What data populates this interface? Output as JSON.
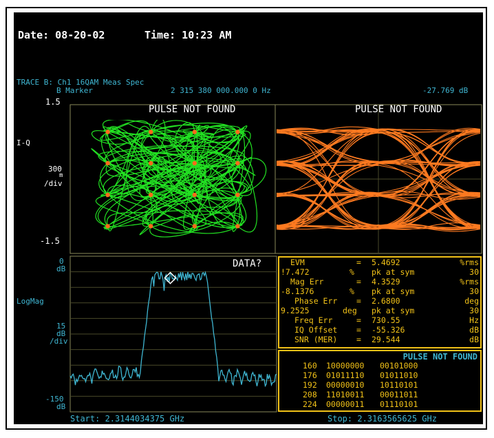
{
  "header": {
    "date_label": "Date: 08-20-02",
    "time_label": "Time: 10:23 AM"
  },
  "trace": {
    "title": "TRACE B: Ch1 16QAM Meas Spec",
    "marker_label": "B Marker",
    "marker_freq": "2 315 380 000.000 0 Hz",
    "marker_level": "-27.769 dB"
  },
  "constellation": {
    "top_tick": "1.5",
    "axis_label": "I-Q",
    "scale_value": "300",
    "scale_unit": "m",
    "scale_div": "/div",
    "bottom_tick": "-1.5",
    "status": "PULSE NOT FOUND"
  },
  "eye": {
    "status": "PULSE NOT FOUND"
  },
  "spectrum": {
    "top_tick": "0",
    "top_unit": "dB",
    "format_label": "LogMag",
    "scale_value": "15",
    "scale_unit": "dB",
    "scale_div": "/div",
    "bottom_tick": "-150",
    "bottom_unit": "dB",
    "status": "DATA?",
    "start": "Start: 2.3144034375 GHz",
    "stop": "Stop: 2.3163565625 GHz"
  },
  "metrics": {
    "rows": [
      {
        "label": "EVM",
        "eq": "=",
        "value": "5.4692",
        "unit": "%rms"
      },
      {
        "label": "!7.472",
        "eq": "%",
        "value": "pk at sym",
        "unit": "30"
      },
      {
        "label": "Mag Err",
        "eq": "=",
        "value": "4.3529",
        "unit": "%rms"
      },
      {
        "label": "-8.1376",
        "eq": "%",
        "value": "pk at sym",
        "unit": "30"
      },
      {
        "label": "Phase Err",
        "eq": "=",
        "value": "2.6800",
        "unit": "deg"
      },
      {
        "label": "9.2525",
        "eq": "deg",
        "value": "pk at sym",
        "unit": "30"
      },
      {
        "label": "Freq Err",
        "eq": "=",
        "value": "730.55",
        "unit": "Hz"
      },
      {
        "label": "IQ Offset",
        "eq": "=",
        "value": "-55.326",
        "unit": "dB"
      },
      {
        "label": "SNR (MER)",
        "eq": "=",
        "value": "29.544",
        "unit": "dB"
      }
    ]
  },
  "symbols": {
    "status": "PULSE NOT FOUND",
    "rows": [
      {
        "index": "160",
        "a": "10000000",
        "b": "00101000"
      },
      {
        "index": "176",
        "a": "01011110",
        "b": "01011010"
      },
      {
        "index": "192",
        "a": "00000010",
        "b": "10110101"
      },
      {
        "index": "208",
        "a": "11010011",
        "b": "00011011"
      },
      {
        "index": "224",
        "a": "00000011",
        "b": "01110101"
      }
    ]
  },
  "colors": {
    "background": "#000000",
    "text": "#ffffff",
    "accent": "#3fb6d2",
    "constellation_trace": "#22e022",
    "constellation_points": "#ff6a1a",
    "eye_trace": "#ff7a20",
    "spectrum_trace": "#3fb6d2",
    "table_border": "#f2c218"
  }
}
